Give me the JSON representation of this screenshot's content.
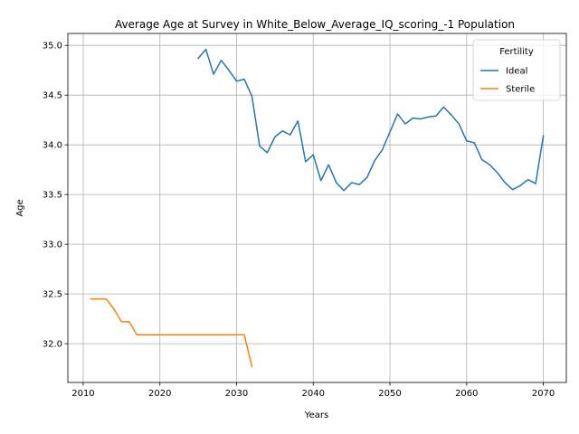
{
  "chart_data": {
    "type": "line",
    "title": "Average Age at Survey in White_Below_Average_IQ_scoring_-1 Population",
    "xlabel": "Years",
    "ylabel": "Age",
    "xlim": [
      2008,
      2073
    ],
    "ylim": [
      31.61,
      35.12
    ],
    "xticks": [
      2010,
      2020,
      2030,
      2040,
      2050,
      2060,
      2070
    ],
    "yticks": [
      32.0,
      32.5,
      33.0,
      33.5,
      34.0,
      34.5,
      35.0
    ],
    "xtick_labels": [
      "2010",
      "2020",
      "2030",
      "2040",
      "2050",
      "2060",
      "2070"
    ],
    "ytick_labels": [
      "32.0",
      "32.5",
      "33.0",
      "33.5",
      "34.0",
      "34.5",
      "35.0"
    ],
    "grid": true,
    "legend": {
      "title": "Fertility",
      "position": "top-right"
    },
    "series": [
      {
        "name": "Ideal",
        "color": "#1f77b4",
        "x": [
          2025,
          2026,
          2027,
          2028,
          2029,
          2030,
          2031,
          2032,
          2033,
          2034,
          2035,
          2036,
          2037,
          2038,
          2039,
          2040,
          2041,
          2042,
          2043,
          2044,
          2045,
          2046,
          2047,
          2048,
          2049,
          2050,
          2051,
          2052,
          2053,
          2054,
          2055,
          2056,
          2057,
          2058,
          2059,
          2060,
          2061,
          2062,
          2063,
          2064,
          2065,
          2066,
          2067,
          2068,
          2069,
          2070
        ],
        "y": [
          34.87,
          34.96,
          34.71,
          34.85,
          34.75,
          34.64,
          34.66,
          34.49,
          33.99,
          33.92,
          34.08,
          34.14,
          34.1,
          34.24,
          33.83,
          33.9,
          33.64,
          33.8,
          33.62,
          33.54,
          33.62,
          33.6,
          33.67,
          33.84,
          33.95,
          34.13,
          34.31,
          34.21,
          34.27,
          34.26,
          34.28,
          34.29,
          34.38,
          34.3,
          34.21,
          34.04,
          34.02,
          33.85,
          33.8,
          33.72,
          33.62,
          33.55,
          33.59,
          33.65,
          33.61,
          34.09
        ]
      },
      {
        "name": "Sterile",
        "color": "#ff7f0e",
        "x": [
          2011,
          2012,
          2013,
          2014,
          2015,
          2016,
          2017,
          2018,
          2019,
          2020,
          2021,
          2022,
          2023,
          2024,
          2025,
          2026,
          2027,
          2028,
          2029,
          2030,
          2031,
          2032
        ],
        "y": [
          32.45,
          32.45,
          32.45,
          32.35,
          32.22,
          32.22,
          32.09,
          32.09,
          32.09,
          32.09,
          32.09,
          32.09,
          32.09,
          32.09,
          32.09,
          32.09,
          32.09,
          32.09,
          32.09,
          32.09,
          32.09,
          31.77
        ]
      }
    ]
  }
}
